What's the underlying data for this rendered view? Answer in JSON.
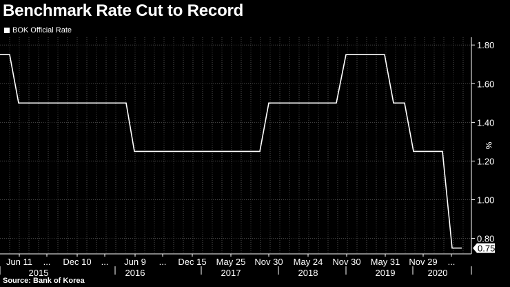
{
  "chart_data": {
    "type": "line",
    "title": "Benchmark Rate Cut to Record",
    "legend": "BOK Official Rate",
    "legend_position": "top-left",
    "ylabel": "%",
    "ylim": [
      0.72,
      1.84
    ],
    "yticks": [
      0.8,
      1.0,
      1.2,
      1.4,
      1.6,
      1.8
    ],
    "ytick_labels": [
      "0.80",
      "1.00",
      "1.20",
      "1.40",
      "1.60",
      "1.80"
    ],
    "y_axis_side": "right",
    "grid": true,
    "last_value_label": "0.75",
    "x_ticks": [
      {
        "label": "Jun 11"
      },
      {
        "label": "..."
      },
      {
        "label": "Dec 10"
      },
      {
        "label": "..."
      },
      {
        "label": "Jun 9"
      },
      {
        "label": "..."
      },
      {
        "label": "Dec 15"
      },
      {
        "label": "May 25"
      },
      {
        "label": "Nov 30"
      },
      {
        "label": "May 24"
      },
      {
        "label": "Nov 30"
      },
      {
        "label": "May 31"
      },
      {
        "label": "Nov 29"
      },
      {
        "label": "..."
      }
    ],
    "year_labels": [
      "2015",
      "2016",
      "2017",
      "2018",
      "2019",
      "2020"
    ],
    "series": [
      {
        "name": "BOK Official Rate",
        "color": "#ffffff",
        "values": [
          1.75,
          1.75,
          1.5,
          1.5,
          1.5,
          1.25,
          1.25,
          1.25,
          1.25,
          1.5,
          1.5,
          1.75,
          1.75,
          1.5,
          1.5,
          1.25,
          1.25,
          0.75,
          0.75
        ]
      }
    ]
  },
  "source": "Source: Bank of Korea",
  "colors": {
    "background": "#000000",
    "line": "#ffffff",
    "grid": "#4a4a4a",
    "text": "#ffffff"
  }
}
